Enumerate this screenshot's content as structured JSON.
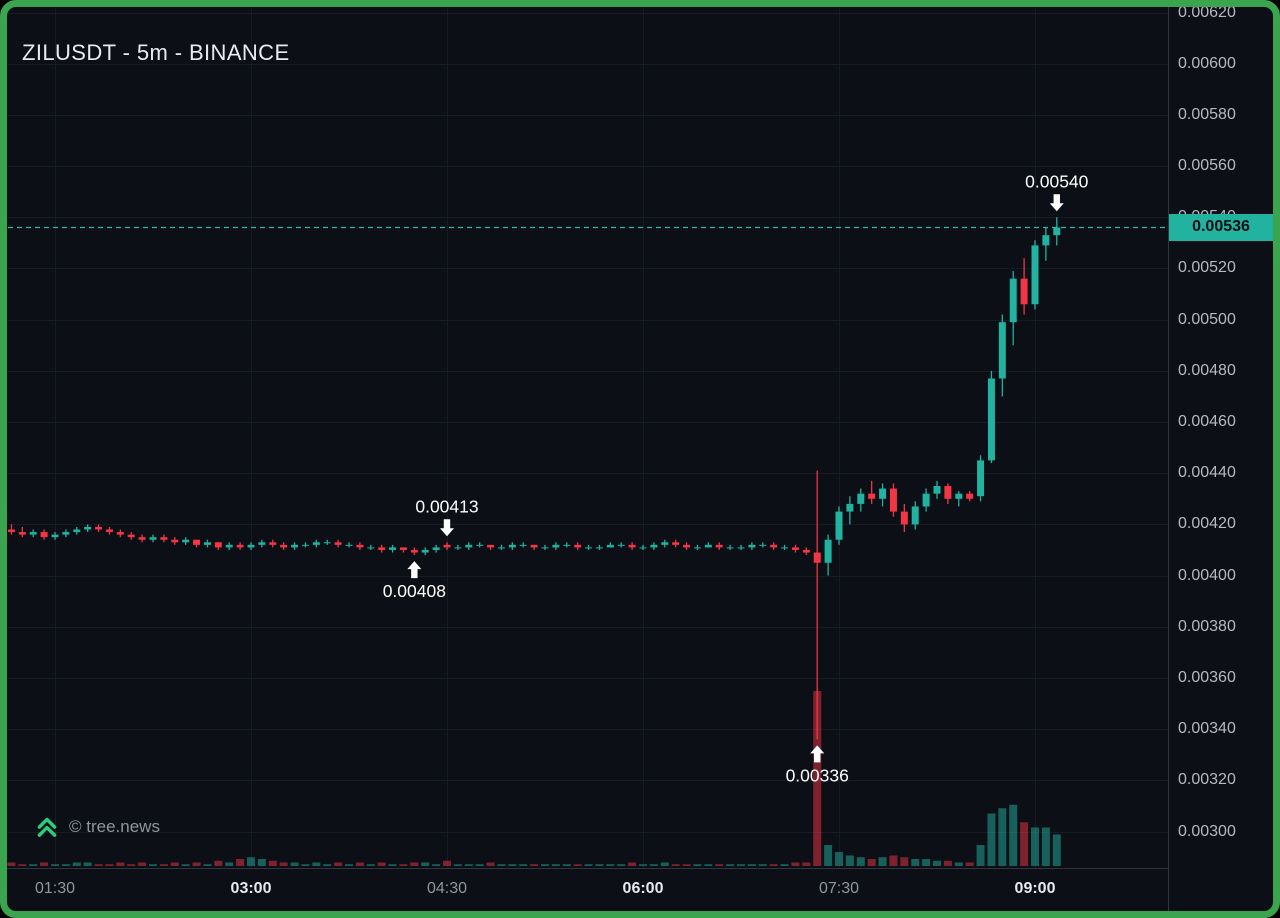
{
  "header": {
    "title": "ZILUSDT - 5m - BINANCE"
  },
  "footer": {
    "watermark": "© tree.news"
  },
  "colors": {
    "background": "#0c0f16",
    "frame": "#3aa54e",
    "grid": "#161c26",
    "axis_separator": "#31353f",
    "axis_text": "#b6b9c2",
    "time_text_dim": "#9196a0",
    "time_text_bold": "#e8e9ed",
    "up": "#21b2a0",
    "down": "#f23645",
    "volume_opacity": 0.5,
    "price_line": "#2fbbab",
    "tag_bg": "#22b2a0",
    "tag_text": "#0b0f15",
    "annotation": "#ffffff",
    "watermark_text": "#8f949d",
    "logo_green": "#2ecc7a",
    "title_text": "#e9eaee"
  },
  "chart_data": {
    "type": "candlestick",
    "title": "ZILUSDT - 5m - BINANCE",
    "symbol": "ZILUSDT",
    "interval": "5m",
    "exchange": "BINANCE",
    "price_axis": {
      "min": 0.003,
      "max": 0.0062,
      "step": 0.0002,
      "labels": [
        "0.00620",
        "0.00600",
        "0.00580",
        "0.00560",
        "0.00540",
        "0.00520",
        "0.00500",
        "0.00480",
        "0.00460",
        "0.00440",
        "0.00420",
        "0.00400",
        "0.00380",
        "0.00360",
        "0.00340",
        "0.00320",
        "0.00300"
      ]
    },
    "time_axis": {
      "labels": [
        {
          "text": "01:30",
          "bold": false
        },
        {
          "text": "03:00",
          "bold": true
        },
        {
          "text": "04:30",
          "bold": false
        },
        {
          "text": "06:00",
          "bold": true
        },
        {
          "text": "07:30",
          "bold": false
        },
        {
          "text": "09:00",
          "bold": true
        }
      ]
    },
    "last_price": {
      "label": "0.00536",
      "value": 0.00536
    },
    "annotations": [
      {
        "text": "0.00413",
        "time": "04:30",
        "price": 0.00413,
        "direction": "down"
      },
      {
        "text": "0.00408",
        "time": "04:15",
        "price": 0.00408,
        "direction": "up"
      },
      {
        "text": "0.00336",
        "time": "07:20",
        "price": 0.00336,
        "direction": "up"
      },
      {
        "text": "0.00540",
        "time": "09:10",
        "price": 0.0054,
        "direction": "down"
      }
    ],
    "price_multiplier": 1e-05,
    "volume_max": 100,
    "candles_format": [
      "time",
      "open",
      "high",
      "low",
      "close",
      "volume"
    ],
    "candles": [
      [
        "01:10",
        418,
        420,
        416,
        417,
        2
      ],
      [
        "01:15",
        417,
        419,
        415,
        416,
        1
      ],
      [
        "01:20",
        416,
        418,
        415,
        417,
        1
      ],
      [
        "01:25",
        417,
        418,
        414,
        415,
        2
      ],
      [
        "01:30",
        415,
        417,
        414,
        416,
        1
      ],
      [
        "01:35",
        416,
        418,
        415,
        417,
        1
      ],
      [
        "01:40",
        417,
        419,
        416,
        418,
        2
      ],
      [
        "01:45",
        418,
        420,
        417,
        419,
        2
      ],
      [
        "01:50",
        419,
        420,
        417,
        418,
        1
      ],
      [
        "01:55",
        418,
        419,
        416,
        417,
        1
      ],
      [
        "02:00",
        417,
        418,
        415,
        416,
        2
      ],
      [
        "02:05",
        416,
        417,
        414,
        415,
        1
      ],
      [
        "02:10",
        415,
        416,
        413,
        414,
        2
      ],
      [
        "02:15",
        414,
        416,
        413,
        415,
        1
      ],
      [
        "02:20",
        415,
        416,
        413,
        414,
        1
      ],
      [
        "02:25",
        414,
        415,
        412,
        413,
        2
      ],
      [
        "02:30",
        413,
        415,
        412,
        414,
        1
      ],
      [
        "02:35",
        414,
        414,
        411,
        412,
        2
      ],
      [
        "02:40",
        412,
        414,
        411,
        413,
        1
      ],
      [
        "02:45",
        413,
        413,
        410,
        411,
        3
      ],
      [
        "02:50",
        411,
        413,
        410,
        412,
        2
      ],
      [
        "02:55",
        412,
        413,
        410,
        411,
        4
      ],
      [
        "03:00",
        411,
        413,
        410,
        412,
        5
      ],
      [
        "03:05",
        412,
        414,
        411,
        413,
        4
      ],
      [
        "03:10",
        413,
        414,
        411,
        412,
        3
      ],
      [
        "03:15",
        412,
        413,
        410,
        411,
        2
      ],
      [
        "03:20",
        411,
        413,
        410,
        412,
        2
      ],
      [
        "03:25",
        412,
        413,
        411,
        412,
        1
      ],
      [
        "03:30",
        412,
        414,
        411,
        413,
        2
      ],
      [
        "03:35",
        413,
        414,
        412,
        413,
        1
      ],
      [
        "03:40",
        413,
        414,
        411,
        412,
        2
      ],
      [
        "03:45",
        412,
        413,
        411,
        412,
        1
      ],
      [
        "03:50",
        412,
        413,
        410,
        411,
        2
      ],
      [
        "03:55",
        411,
        412,
        410,
        411,
        1
      ],
      [
        "04:00",
        411,
        412,
        409,
        410,
        2
      ],
      [
        "04:05",
        410,
        412,
        409,
        411,
        1
      ],
      [
        "04:10",
        411,
        411,
        409,
        410,
        1
      ],
      [
        "04:15",
        410,
        411,
        408,
        409,
        2
      ],
      [
        "04:20",
        409,
        411,
        408,
        410,
        2
      ],
      [
        "04:25",
        410,
        412,
        409,
        411,
        1
      ],
      [
        "04:30",
        412,
        413,
        410,
        411,
        3
      ],
      [
        "04:35",
        411,
        412,
        410,
        411,
        1
      ],
      [
        "04:40",
        411,
        413,
        410,
        412,
        1
      ],
      [
        "04:45",
        412,
        413,
        411,
        412,
        1
      ],
      [
        "04:50",
        412,
        412,
        410,
        411,
        2
      ],
      [
        "04:55",
        411,
        412,
        410,
        411,
        1
      ],
      [
        "05:00",
        411,
        413,
        410,
        412,
        1
      ],
      [
        "05:05",
        412,
        413,
        411,
        412,
        1
      ],
      [
        "05:10",
        412,
        412,
        410,
        411,
        1
      ],
      [
        "05:15",
        411,
        412,
        410,
        411,
        1
      ],
      [
        "05:20",
        411,
        413,
        410,
        412,
        1
      ],
      [
        "05:25",
        412,
        413,
        411,
        412,
        1
      ],
      [
        "05:30",
        412,
        413,
        410,
        411,
        1
      ],
      [
        "05:35",
        411,
        412,
        410,
        411,
        1
      ],
      [
        "05:40",
        411,
        412,
        410,
        411,
        1
      ],
      [
        "05:45",
        411,
        413,
        411,
        412,
        1
      ],
      [
        "05:50",
        412,
        413,
        411,
        412,
        1
      ],
      [
        "05:55",
        412,
        413,
        410,
        411,
        2
      ],
      [
        "06:00",
        411,
        412,
        410,
        411,
        1
      ],
      [
        "06:05",
        411,
        413,
        410,
        412,
        1
      ],
      [
        "06:10",
        412,
        414,
        411,
        413,
        2
      ],
      [
        "06:15",
        413,
        414,
        411,
        412,
        1
      ],
      [
        "06:20",
        412,
        413,
        410,
        411,
        1
      ],
      [
        "06:25",
        411,
        412,
        410,
        411,
        1
      ],
      [
        "06:30",
        411,
        413,
        411,
        412,
        1
      ],
      [
        "06:35",
        412,
        413,
        410,
        411,
        1
      ],
      [
        "06:40",
        411,
        412,
        410,
        411,
        1
      ],
      [
        "06:45",
        411,
        412,
        410,
        411,
        1
      ],
      [
        "06:50",
        411,
        413,
        410,
        412,
        1
      ],
      [
        "06:55",
        412,
        413,
        411,
        412,
        1
      ],
      [
        "07:00",
        412,
        413,
        410,
        411,
        1
      ],
      [
        "07:05",
        411,
        412,
        410,
        411,
        1
      ],
      [
        "07:10",
        411,
        412,
        409,
        410,
        2
      ],
      [
        "07:15",
        410,
        411,
        408,
        409,
        2
      ],
      [
        "07:20",
        409,
        441,
        336,
        405,
        100
      ],
      [
        "07:25",
        405,
        416,
        400,
        414,
        12
      ],
      [
        "07:30",
        414,
        427,
        412,
        425,
        8
      ],
      [
        "07:35",
        425,
        431,
        420,
        428,
        6
      ],
      [
        "07:40",
        428,
        434,
        425,
        432,
        5
      ],
      [
        "07:45",
        432,
        437,
        428,
        430,
        4
      ],
      [
        "07:50",
        430,
        436,
        427,
        434,
        5
      ],
      [
        "07:55",
        434,
        436,
        423,
        425,
        6
      ],
      [
        "08:00",
        425,
        428,
        417,
        420,
        5
      ],
      [
        "08:05",
        420,
        429,
        418,
        427,
        4
      ],
      [
        "08:10",
        427,
        434,
        425,
        432,
        4
      ],
      [
        "08:15",
        432,
        437,
        430,
        435,
        3
      ],
      [
        "08:20",
        435,
        436,
        428,
        430,
        3
      ],
      [
        "08:25",
        430,
        433,
        427,
        432,
        2
      ],
      [
        "08:30",
        432,
        433,
        429,
        430,
        2
      ],
      [
        "08:35",
        431,
        447,
        429,
        445,
        12
      ],
      [
        "08:40",
        445,
        480,
        444,
        477,
        30
      ],
      [
        "08:45",
        477,
        502,
        470,
        499,
        33
      ],
      [
        "08:50",
        499,
        519,
        490,
        516,
        35
      ],
      [
        "08:55",
        516,
        524,
        502,
        506,
        25
      ],
      [
        "09:00",
        506,
        531,
        504,
        529,
        22
      ],
      [
        "09:05",
        529,
        536,
        523,
        533,
        22
      ],
      [
        "09:10",
        533,
        540,
        529,
        536,
        18
      ]
    ]
  }
}
